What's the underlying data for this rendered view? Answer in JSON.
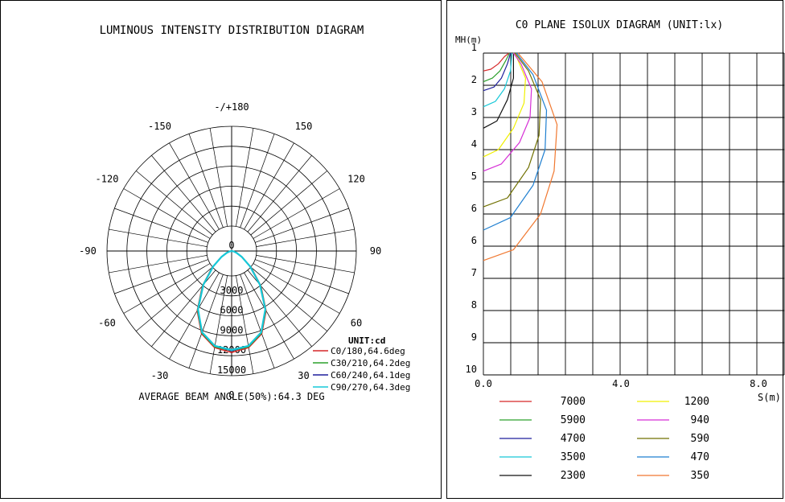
{
  "polar": {
    "title": "LUMINOUS INTENSITY DISTRIBUTION DIAGRAM",
    "angle_labels": [
      "-/+180",
      "150",
      "120",
      "90",
      "60",
      "30",
      "0",
      "-30",
      "-60",
      "-90",
      "-120",
      "-150"
    ],
    "radial_labels": [
      "0",
      "3000",
      "6000",
      "9000",
      "12000",
      "15000"
    ],
    "unit": "UNIT:cd",
    "legend": [
      {
        "label": "C0/180,64.6deg",
        "color": "#d62728"
      },
      {
        "label": "C30/210,64.2deg",
        "color": "#2ca02c"
      },
      {
        "label": "C60/240,64.1deg",
        "color": "#1f1f9c"
      },
      {
        "label": "C90/270,64.3deg",
        "color": "#17c8d8"
      }
    ],
    "beam_angle_text": "AVERAGE BEAM ANGLE(50%):64.3 DEG"
  },
  "isolux": {
    "title": "C0 PLANE ISOLUX DIAGRAM (UNIT:lx)",
    "y_axis_label": "MH(m)",
    "x_axis_label": "S(m)",
    "y_tick_labels": [
      "1",
      "2",
      "3",
      "4",
      "5",
      "6",
      "6",
      "7",
      "8",
      "9",
      "10"
    ],
    "x_tick_labels": [
      "0.0",
      "4.0",
      "8.0"
    ],
    "legend": [
      {
        "value": "7000",
        "color": "#d62728"
      },
      {
        "value": "5900",
        "color": "#2ca02c"
      },
      {
        "value": "4700",
        "color": "#1f1f9c"
      },
      {
        "value": "3500",
        "color": "#17c8d8"
      },
      {
        "value": "2300",
        "color": "#111111"
      },
      {
        "value": "1200",
        "color": "#f0f000"
      },
      {
        "value": "940",
        "color": "#d62fd6"
      },
      {
        "value": "590",
        "color": "#707000"
      },
      {
        "value": "470",
        "color": "#1f7fd0"
      },
      {
        "value": "350",
        "color": "#f07830"
      }
    ]
  },
  "chart_data": [
    {
      "type": "polar",
      "title": "LUMINOUS INTENSITY DISTRIBUTION DIAGRAM",
      "unit": "cd",
      "angle_ticks_deg": [
        180,
        150,
        120,
        90,
        60,
        30,
        0,
        -30,
        -60,
        -90,
        -120,
        -150
      ],
      "radial_ticks": [
        0,
        3000,
        6000,
        9000,
        12000,
        15000
      ],
      "rlim": [
        0,
        15000
      ],
      "series": [
        {
          "name": "C0/180,64.6deg",
          "angle_deg": [
            0,
            10,
            20,
            30,
            40,
            50,
            60,
            70,
            80,
            90
          ],
          "values": [
            12200,
            11800,
            10600,
            8300,
            5500,
            3100,
            1500,
            700,
            250,
            0
          ]
        },
        {
          "name": "C30/210,64.2deg",
          "angle_deg": [
            0,
            10,
            20,
            30,
            40,
            50,
            60,
            70,
            80,
            90
          ],
          "values": [
            12000,
            11700,
            10500,
            8200,
            5400,
            3000,
            1400,
            650,
            230,
            0
          ]
        },
        {
          "name": "C60/240,64.1deg",
          "angle_deg": [
            0,
            10,
            20,
            30,
            40,
            50,
            60,
            70,
            80,
            90
          ],
          "values": [
            12000,
            11600,
            10400,
            8100,
            5300,
            2900,
            1400,
            620,
            220,
            0
          ]
        },
        {
          "name": "C90/270,64.3deg",
          "angle_deg": [
            0,
            10,
            20,
            30,
            40,
            50,
            60,
            70,
            80,
            90
          ],
          "values": [
            11900,
            11600,
            10400,
            8100,
            5300,
            2900,
            1400,
            620,
            220,
            0
          ]
        }
      ],
      "average_beam_angle_deg": 64.3
    },
    {
      "type": "line",
      "title": "C0 PLANE ISOLUX DIAGRAM (UNIT:lx)",
      "xlabel": "S(m)",
      "ylabel": "MH(m)",
      "xlim": [
        0,
        10
      ],
      "ylim": [
        1,
        10
      ],
      "series": [
        {
          "name": "7000",
          "x": [
            0,
            0.25,
            0.5,
            0.7,
            0.85
          ],
          "y": [
            1.5,
            1.45,
            1.3,
            1.1,
            1.0
          ]
        },
        {
          "name": "5900",
          "x": [
            0,
            0.3,
            0.55,
            0.75,
            0.87
          ],
          "y": [
            1.8,
            1.7,
            1.5,
            1.2,
            1.0
          ]
        },
        {
          "name": "4700",
          "x": [
            0,
            0.35,
            0.6,
            0.8,
            0.9
          ],
          "y": [
            2.05,
            1.95,
            1.7,
            1.3,
            1.0
          ]
        },
        {
          "name": "3500",
          "x": [
            0,
            0.4,
            0.7,
            0.9,
            0.95
          ],
          "y": [
            2.5,
            2.35,
            2.0,
            1.5,
            1.0
          ]
        },
        {
          "name": "2300",
          "x": [
            0,
            0.45,
            0.8,
            1.0,
            1.0
          ],
          "y": [
            3.1,
            2.9,
            2.3,
            1.7,
            1.0
          ]
        },
        {
          "name": "1200",
          "x": [
            0,
            0.5,
            1.0,
            1.35,
            1.4,
            1.1,
            1.0
          ],
          "y": [
            3.9,
            3.7,
            3.1,
            2.4,
            1.7,
            1.1,
            1.0
          ]
        },
        {
          "name": "940",
          "x": [
            0,
            0.6,
            1.2,
            1.55,
            1.6,
            1.25,
            1.0
          ],
          "y": [
            4.3,
            4.1,
            3.5,
            2.8,
            2.0,
            1.3,
            1.0
          ]
        },
        {
          "name": "590",
          "x": [
            0,
            0.8,
            1.5,
            1.85,
            1.9,
            1.5,
            1.05
          ],
          "y": [
            5.3,
            5.05,
            4.2,
            3.3,
            2.3,
            1.5,
            1.0
          ]
        },
        {
          "name": "470",
          "x": [
            0,
            0.9,
            1.65,
            2.05,
            2.1,
            1.65,
            1.1
          ],
          "y": [
            5.95,
            5.6,
            4.7,
            3.7,
            2.6,
            1.6,
            1.0
          ]
        },
        {
          "name": "350",
          "x": [
            0,
            1.0,
            1.9,
            2.35,
            2.45,
            1.95,
            1.15
          ],
          "y": [
            6.8,
            6.5,
            5.5,
            4.3,
            3.0,
            1.8,
            1.0
          ]
        }
      ]
    }
  ]
}
